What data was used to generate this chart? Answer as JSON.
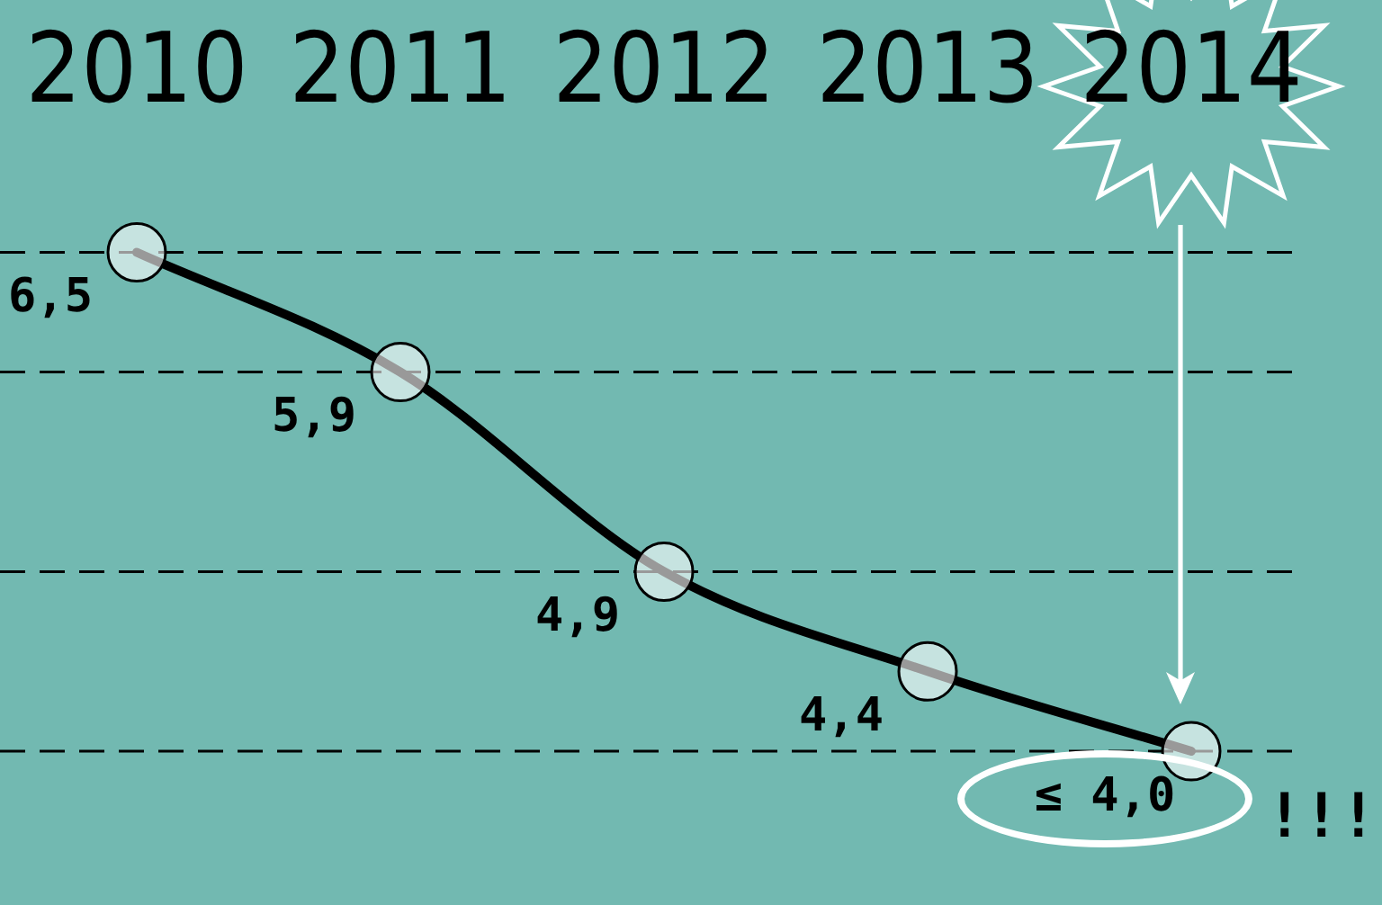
{
  "chart_data": {
    "type": "line",
    "categories": [
      "2010",
      "2011",
      "2012",
      "2013",
      "2014"
    ],
    "series": [
      {
        "color": "#000000",
        "values": [
          6.5,
          5.9,
          4.9,
          4.4,
          4.0
        ],
        "value_labels": [
          "6,5",
          "5,9",
          "4,9",
          "4,4",
          "≤ 4,0"
        ]
      }
    ],
    "marker": "circle",
    "ref_lines": [
      {
        "axis": "y",
        "value": 6.5,
        "line_style": "dashed",
        "color": "#000000"
      },
      {
        "axis": "y",
        "value": 5.9,
        "line_style": "dashed",
        "color": "#000000"
      },
      {
        "axis": "y",
        "value": 4.9,
        "line_style": "dashed",
        "color": "#000000"
      },
      {
        "axis": "y",
        "value": 4.0,
        "line_style": "dashed",
        "color": "#000000"
      }
    ],
    "annotations": [
      "!!!"
    ]
  }
}
